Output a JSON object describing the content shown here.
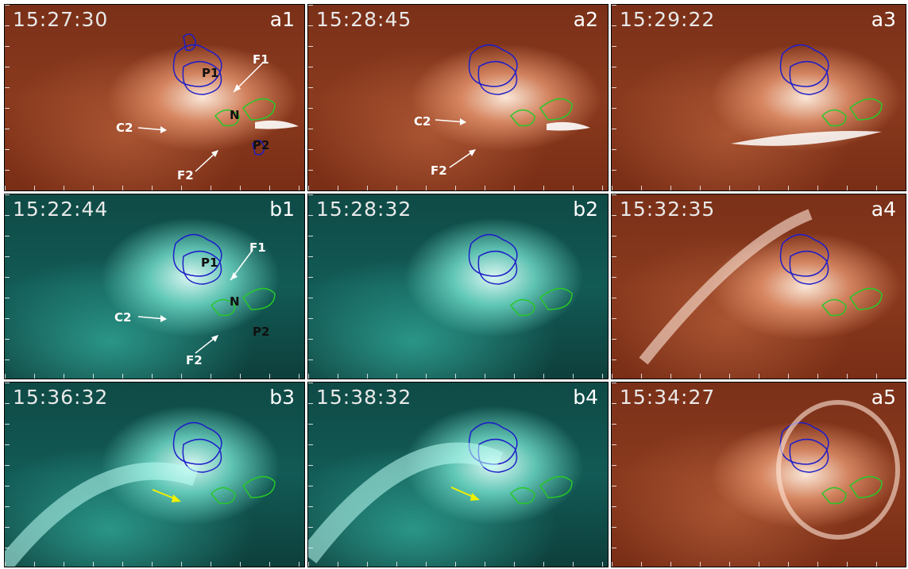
{
  "panels": [
    {
      "time": "15:27:30",
      "label": "a1",
      "style": "red",
      "annotations": [
        {
          "text": "F1"
        },
        {
          "text": "P1"
        },
        {
          "text": "N"
        },
        {
          "text": "C2"
        },
        {
          "text": "P2"
        },
        {
          "text": "F2"
        }
      ]
    },
    {
      "time": "15:28:45",
      "label": "a2",
      "style": "red",
      "annotations": [
        {
          "text": "C2"
        },
        {
          "text": "F2"
        }
      ]
    },
    {
      "time": "15:29:22",
      "label": "a3",
      "style": "red",
      "annotations": []
    },
    {
      "time": "15:22:44",
      "label": "b1",
      "style": "cyan",
      "annotations": [
        {
          "text": "F1"
        },
        {
          "text": "P1"
        },
        {
          "text": "N"
        },
        {
          "text": "C2"
        },
        {
          "text": "P2"
        },
        {
          "text": "F2"
        }
      ]
    },
    {
      "time": "15:28:32",
      "label": "b2",
      "style": "cyan",
      "annotations": []
    },
    {
      "time": "15:32:35",
      "label": "a4",
      "style": "red",
      "annotations": []
    },
    {
      "time": "15:36:32",
      "label": "b3",
      "style": "cyan",
      "annotations": []
    },
    {
      "time": "15:38:32",
      "label": "b4",
      "style": "cyan",
      "annotations": []
    },
    {
      "time": "15:34:27",
      "label": "a5",
      "style": "red",
      "annotations": []
    }
  ],
  "colors": {
    "positive_contour": "#1e1ec8",
    "negative_contour": "#28c828",
    "arrow_white": "#ffffff",
    "arrow_yellow": "#f0f000"
  }
}
